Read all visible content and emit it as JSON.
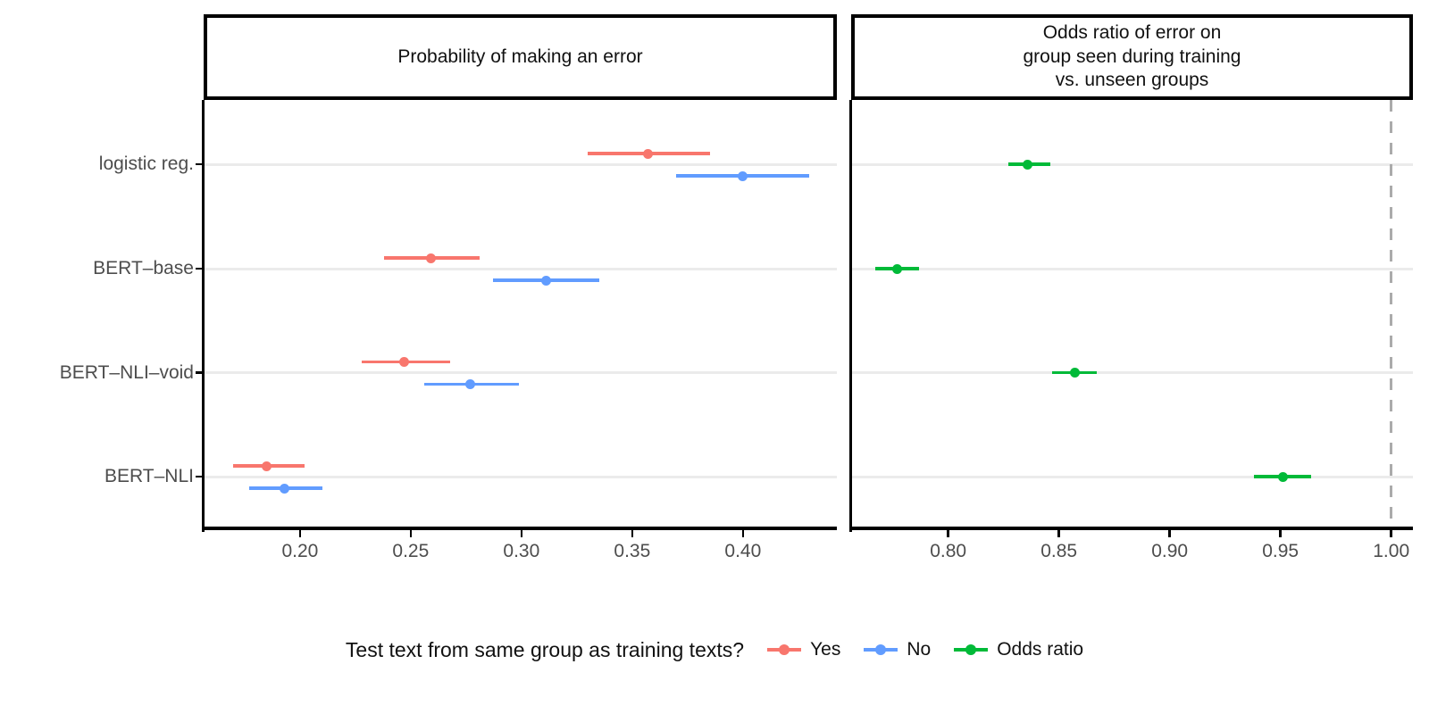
{
  "colors": {
    "yes": "#F8766D",
    "no": "#619CFF",
    "odds_ratio": "#00BA38",
    "gridline": "#EBEBEB",
    "axis_text": "#4D4D4D",
    "axis_line": "#000000",
    "refline": "#ABABAB",
    "strip_border": "#000000",
    "background": "#FFFFFF"
  },
  "chart_data": [
    {
      "type": "scatter",
      "subtype": "horizontal pointrange (dot with error bars), dodged by series",
      "title": "Probability of making an error",
      "categories": [
        "logistic reg.",
        "BERT–base",
        "BERT–NLI–void",
        "BERT–NLI"
      ],
      "xlim": [
        0.1565,
        0.4424
      ],
      "x_ticks": [
        0.2,
        0.25,
        0.3,
        0.35,
        0.4
      ],
      "x_tick_labels": [
        "0.20",
        "0.25",
        "0.30",
        "0.35",
        "0.40"
      ],
      "grid": "horizontal major gridlines only",
      "series": [
        {
          "name": "Yes",
          "color_key": "yes",
          "points": [
            {
              "category": "logistic reg.",
              "value": 0.357,
              "ci_low": 0.33,
              "ci_high": 0.385
            },
            {
              "category": "BERT–base",
              "value": 0.259,
              "ci_low": 0.238,
              "ci_high": 0.281
            },
            {
              "category": "BERT–NLI–void",
              "value": 0.247,
              "ci_low": 0.228,
              "ci_high": 0.268
            },
            {
              "category": "BERT–NLI",
              "value": 0.185,
              "ci_low": 0.17,
              "ci_high": 0.202
            }
          ]
        },
        {
          "name": "No",
          "color_key": "no",
          "points": [
            {
              "category": "logistic reg.",
              "value": 0.4,
              "ci_low": 0.37,
              "ci_high": 0.43
            },
            {
              "category": "BERT–base",
              "value": 0.311,
              "ci_low": 0.287,
              "ci_high": 0.335
            },
            {
              "category": "BERT–NLI–void",
              "value": 0.277,
              "ci_low": 0.256,
              "ci_high": 0.299
            },
            {
              "category": "BERT–NLI",
              "value": 0.193,
              "ci_low": 0.177,
              "ci_high": 0.21
            }
          ]
        }
      ]
    },
    {
      "type": "scatter",
      "subtype": "horizontal pointrange (dot with error bars)",
      "title": "Odds ratio of error on\ngroup seen during training\nvs. unseen groups",
      "categories": [
        "logistic reg.",
        "BERT–base",
        "BERT–NLI–void",
        "BERT–NLI"
      ],
      "xlim": [
        0.7562,
        1.0098
      ],
      "x_ticks": [
        0.8,
        0.85,
        0.9,
        0.95,
        1.0
      ],
      "x_tick_labels": [
        "0.80",
        "0.85",
        "0.90",
        "0.95",
        "1.00"
      ],
      "grid": "horizontal major gridlines only",
      "reference_line": {
        "x": 1.0,
        "style": "dashed",
        "color_key": "refline"
      },
      "series": [
        {
          "name": "Odds ratio",
          "color_key": "odds_ratio",
          "points": [
            {
              "category": "logistic reg.",
              "value": 0.836,
              "ci_low": 0.827,
              "ci_high": 0.846
            },
            {
              "category": "BERT–base",
              "value": 0.777,
              "ci_low": 0.767,
              "ci_high": 0.787
            },
            {
              "category": "BERT–NLI–void",
              "value": 0.857,
              "ci_low": 0.847,
              "ci_high": 0.867
            },
            {
              "category": "BERT–NLI",
              "value": 0.951,
              "ci_low": 0.938,
              "ci_high": 0.964
            }
          ]
        }
      ]
    }
  ],
  "legend": {
    "title": "Test text from same group as training texts?",
    "entries": [
      {
        "label": "Yes",
        "color_key": "yes"
      },
      {
        "label": "No",
        "color_key": "no"
      },
      {
        "label": "Odds ratio",
        "color_key": "odds_ratio"
      }
    ]
  }
}
